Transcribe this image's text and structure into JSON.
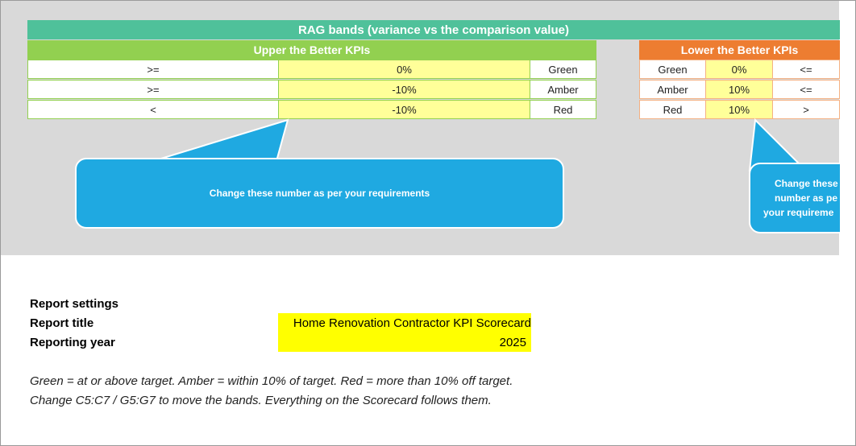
{
  "banner": {
    "title": "RAG bands (variance vs the comparison value)"
  },
  "upper": {
    "title": "Upper the Better KPIs",
    "rows": [
      {
        "op": ">=",
        "value": "0%",
        "label": "Green"
      },
      {
        "op": ">=",
        "value": "-10%",
        "label": "Amber"
      },
      {
        "op": "<",
        "value": "-10%",
        "label": "Red"
      }
    ]
  },
  "lower": {
    "title": "Lower the Better KPIs",
    "rows": [
      {
        "label": "Green",
        "value": "0%",
        "op": "<="
      },
      {
        "label": "Amber",
        "value": "10%",
        "op": "<="
      },
      {
        "label": "Red",
        "value": "10%",
        "op": ">"
      }
    ]
  },
  "callouts": {
    "upper": "Change these number as per your requirements",
    "lower_line1": "Change these",
    "lower_line2": "number as pe",
    "lower_line3": "your requireme"
  },
  "settings": {
    "section_label": "Report settings",
    "title_label": "Report title",
    "year_label": "Reporting year",
    "title_value": "Home Renovation Contractor KPI Scorecard",
    "year_value": "2025"
  },
  "notes": {
    "line1": "Green = at or above target. Amber = within 10% of target. Red = more than 10% off target.",
    "line2": "Change C5:C7 / G5:G7 to move the bands. Everything on the Scorecard follows them."
  }
}
